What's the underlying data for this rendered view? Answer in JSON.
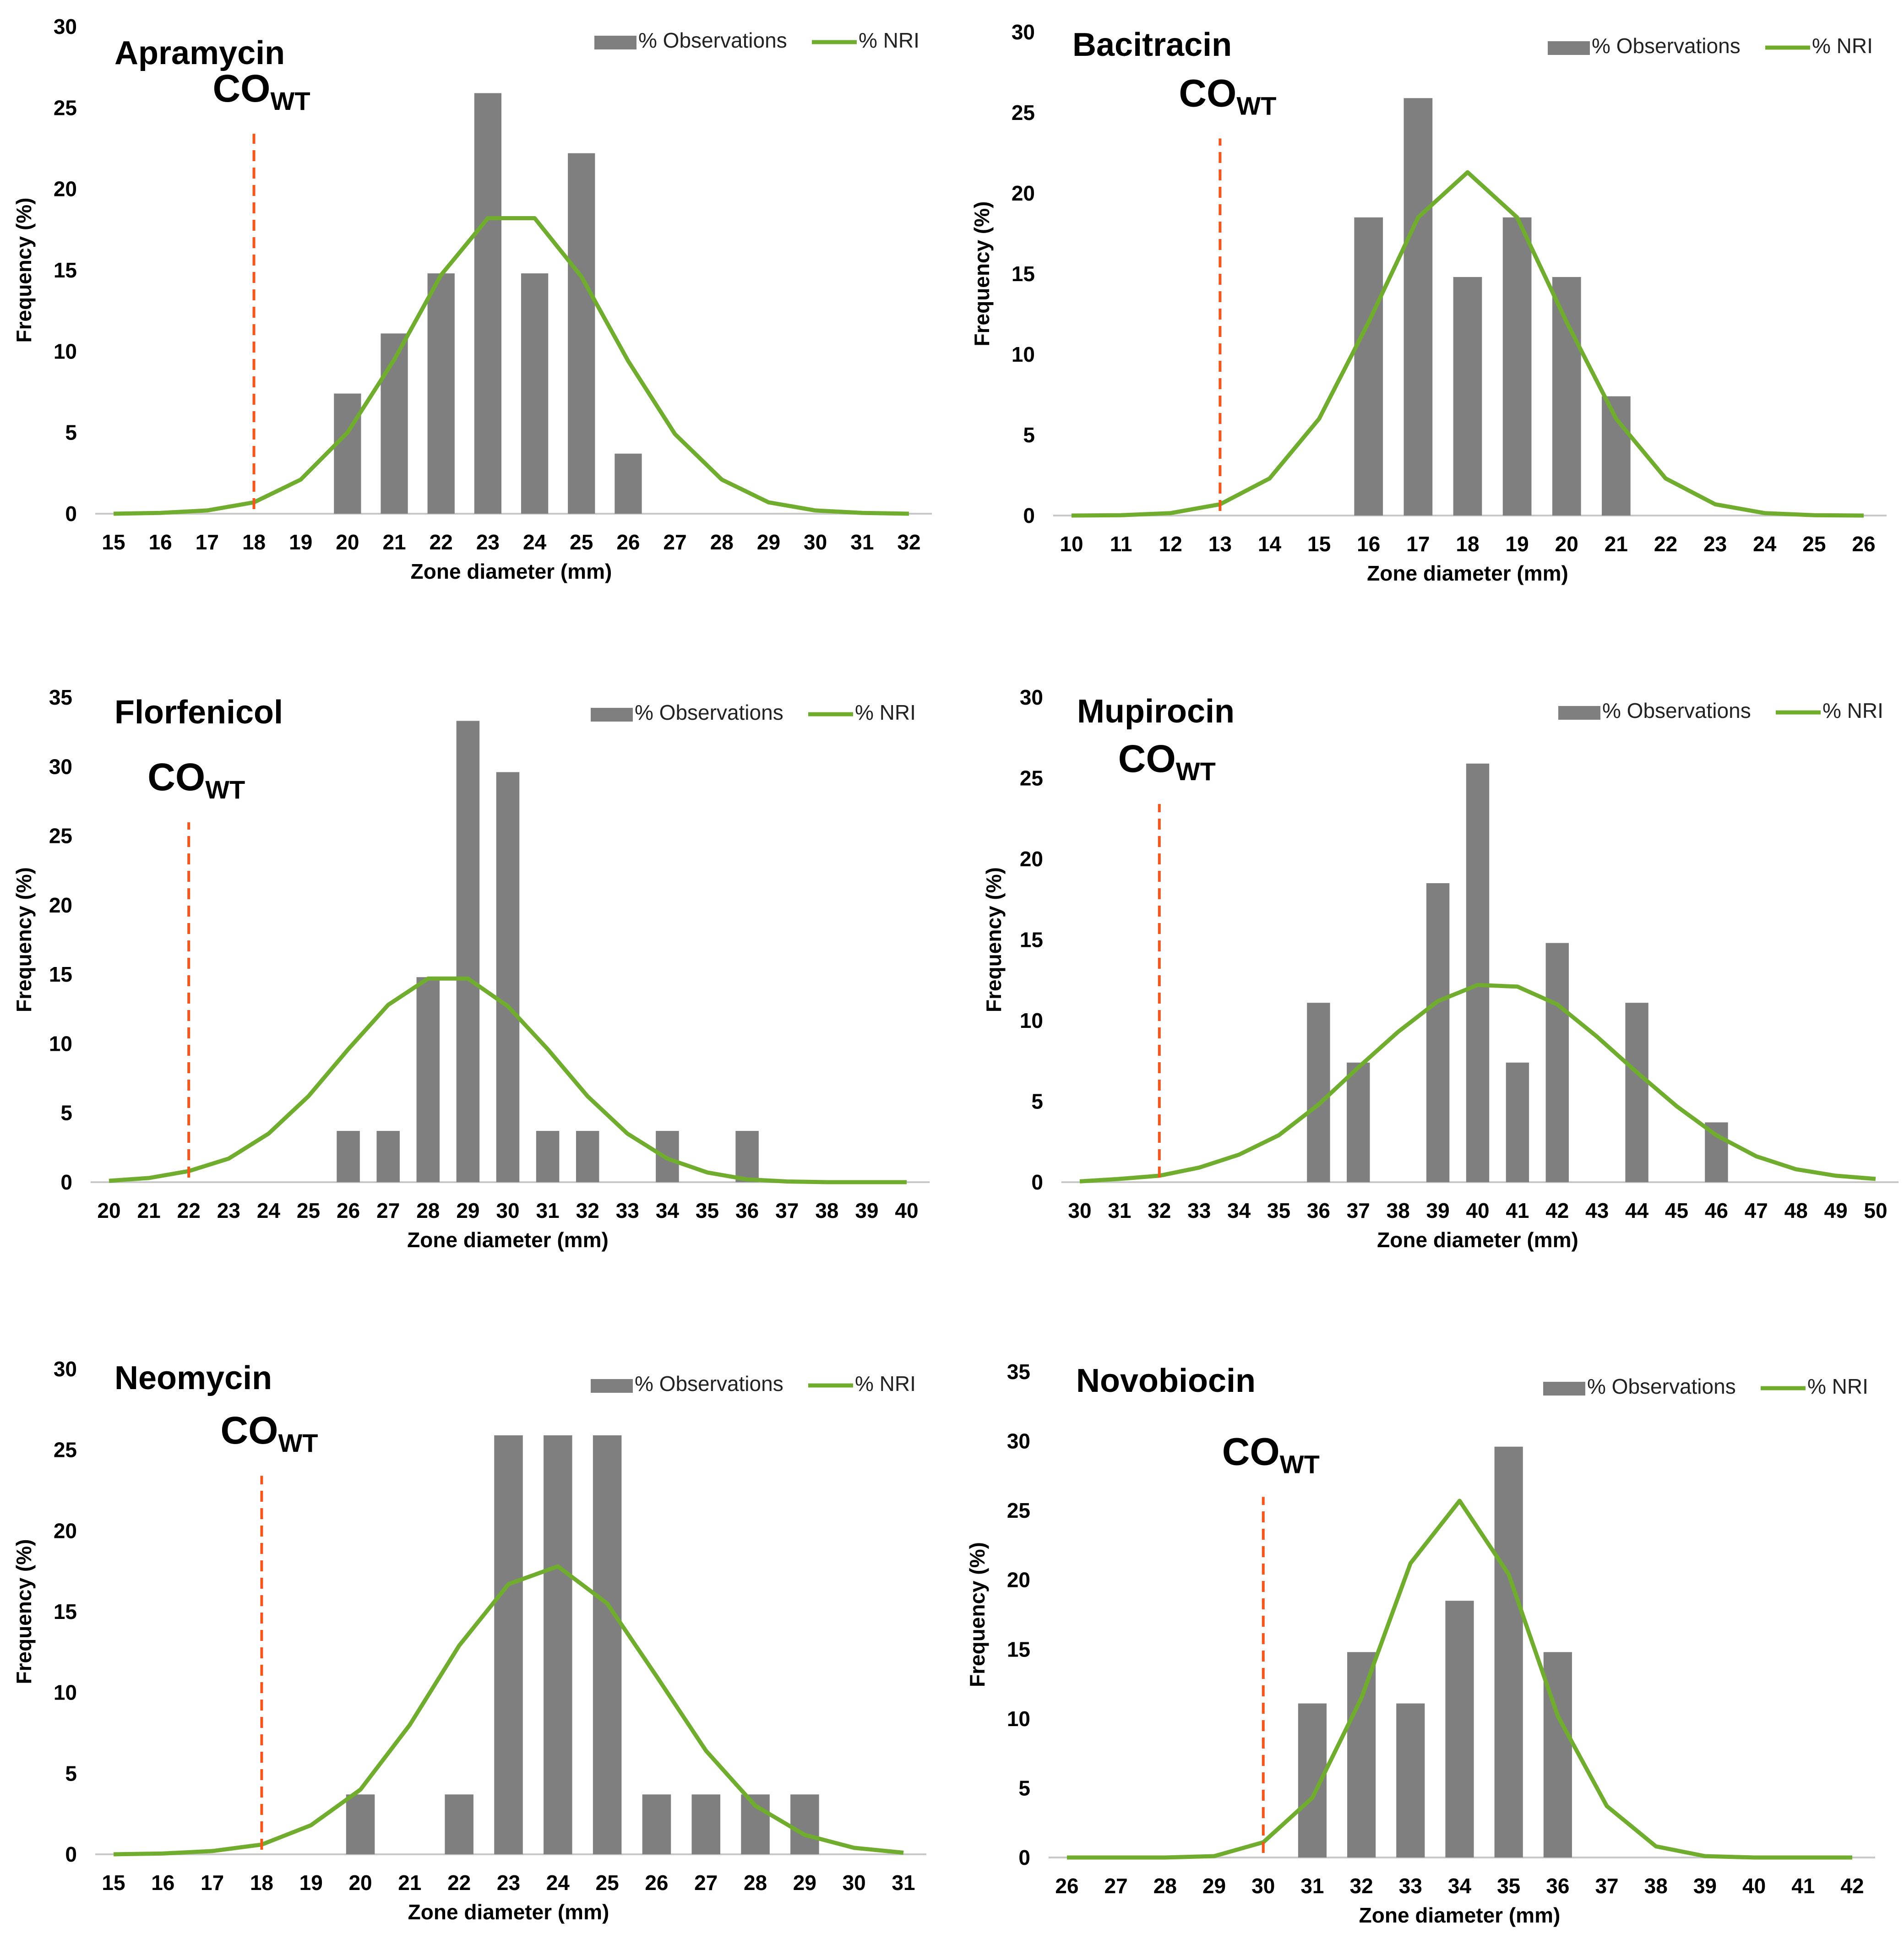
{
  "legend": {
    "observations": "% Observations",
    "nri": "% NRI"
  },
  "colors": {
    "bar": "#7f7f7f",
    "line": "#70ad2f",
    "cutoff": "#f4561c"
  },
  "chart_data": [
    {
      "type": "bar",
      "title": "Apramycin",
      "xlabel": "Zone diameter (mm)",
      "ylabel": "Frequency (%)",
      "ylim": [
        0,
        30
      ],
      "yticks": [
        0,
        5,
        10,
        15,
        20,
        25,
        30
      ],
      "categories": [
        15,
        16,
        17,
        18,
        19,
        20,
        21,
        22,
        23,
        24,
        25,
        26,
        27,
        28,
        29,
        30,
        31,
        32
      ],
      "series": [
        {
          "name": "% Observations",
          "type": "bar",
          "values": [
            0,
            0,
            0,
            0,
            0,
            7.4,
            11.1,
            14.8,
            25.9,
            14.8,
            22.2,
            3.7,
            0,
            0,
            0,
            0,
            0,
            0
          ]
        },
        {
          "name": "% NRI",
          "type": "line",
          "values": [
            0.0,
            0.05,
            0.2,
            0.7,
            2.1,
            5.0,
            9.5,
            14.7,
            18.2,
            18.2,
            14.6,
            9.4,
            4.9,
            2.1,
            0.7,
            0.2,
            0.05,
            0.0
          ]
        }
      ],
      "cutoff": {
        "label": "CO",
        "sub": "WT",
        "x": 18
      }
    },
    {
      "type": "bar",
      "title": "Bacitracin",
      "xlabel": "Zone diameter (mm)",
      "ylabel": "Frequency (%)",
      "ylim": [
        0,
        30
      ],
      "yticks": [
        0,
        5,
        10,
        15,
        20,
        25,
        30
      ],
      "categories": [
        10,
        11,
        12,
        13,
        14,
        15,
        16,
        17,
        18,
        19,
        20,
        21,
        22,
        23,
        24,
        25,
        26
      ],
      "series": [
        {
          "name": "% Observations",
          "type": "bar",
          "values": [
            0,
            0,
            0,
            0,
            0,
            0,
            18.5,
            25.9,
            14.8,
            18.5,
            14.8,
            7.4,
            0,
            0,
            0,
            0,
            0
          ]
        },
        {
          "name": "% NRI",
          "type": "line",
          "values": [
            0.0,
            0.02,
            0.15,
            0.7,
            2.3,
            6.0,
            12.0,
            18.5,
            21.3,
            18.5,
            12.0,
            6.0,
            2.3,
            0.7,
            0.15,
            0.02,
            0.0
          ]
        }
      ],
      "cutoff": {
        "label": "CO",
        "sub": "WT",
        "x": 13
      }
    },
    {
      "type": "bar",
      "title": "Florfenicol",
      "xlabel": "Zone diameter (mm)",
      "ylabel": "Frequency (%)",
      "ylim": [
        0,
        35
      ],
      "yticks": [
        0,
        5,
        10,
        15,
        20,
        25,
        30,
        35
      ],
      "categories": [
        20,
        21,
        22,
        23,
        24,
        25,
        26,
        27,
        28,
        29,
        30,
        31,
        32,
        33,
        34,
        35,
        36,
        37,
        38,
        39,
        40
      ],
      "series": [
        {
          "name": "% Observations",
          "type": "bar",
          "values": [
            0,
            0,
            0,
            0,
            0,
            0,
            3.7,
            3.7,
            14.8,
            33.3,
            29.6,
            3.7,
            3.7,
            0,
            3.7,
            0,
            3.7,
            0,
            0,
            0,
            0
          ]
        },
        {
          "name": "% NRI",
          "type": "line",
          "values": [
            0.1,
            0.3,
            0.8,
            1.7,
            3.5,
            6.2,
            9.6,
            12.8,
            14.7,
            14.7,
            12.7,
            9.6,
            6.2,
            3.5,
            1.7,
            0.7,
            0.2,
            0.05,
            0.0,
            0.0,
            0.0
          ]
        }
      ],
      "cutoff": {
        "label": "CO",
        "sub": "WT",
        "x": 22
      }
    },
    {
      "type": "bar",
      "title": "Mupirocin",
      "xlabel": "Zone diameter (mm)",
      "ylabel": "Frequency (%)",
      "ylim": [
        0,
        30
      ],
      "yticks": [
        0,
        5,
        10,
        15,
        20,
        25,
        30
      ],
      "categories": [
        30,
        31,
        32,
        33,
        34,
        35,
        36,
        37,
        38,
        39,
        40,
        41,
        42,
        43,
        44,
        45,
        46,
        47,
        48,
        49,
        50
      ],
      "series": [
        {
          "name": "% Observations",
          "type": "bar",
          "values": [
            0,
            0,
            0,
            0,
            0,
            0,
            11.1,
            7.4,
            0,
            18.5,
            25.9,
            7.4,
            14.8,
            0,
            11.1,
            0,
            3.7,
            0,
            0,
            0,
            0
          ]
        },
        {
          "name": "% NRI",
          "type": "line",
          "values": [
            0.05,
            0.2,
            0.4,
            0.9,
            1.7,
            2.9,
            4.8,
            7.1,
            9.3,
            11.2,
            12.2,
            12.1,
            11.0,
            9.0,
            6.8,
            4.7,
            2.9,
            1.6,
            0.8,
            0.4,
            0.2
          ]
        }
      ],
      "cutoff": {
        "label": "CO",
        "sub": "WT",
        "x": 32
      }
    },
    {
      "type": "bar",
      "title": "Neomycin",
      "xlabel": "Zone diameter (mm)",
      "ylabel": "Frequency (%)",
      "ylim": [
        0,
        30
      ],
      "yticks": [
        0,
        5,
        10,
        15,
        20,
        25,
        30
      ],
      "categories": [
        15,
        16,
        17,
        18,
        19,
        20,
        21,
        22,
        23,
        24,
        25,
        26,
        27,
        28,
        29,
        30,
        31
      ],
      "series": [
        {
          "name": "% Observations",
          "type": "bar",
          "values": [
            0,
            0,
            0,
            0,
            0,
            3.7,
            0,
            3.7,
            25.9,
            25.9,
            25.9,
            3.7,
            3.7,
            3.7,
            3.7,
            0,
            0
          ]
        },
        {
          "name": "% NRI",
          "type": "line",
          "values": [
            0.0,
            0.05,
            0.2,
            0.6,
            1.8,
            4.0,
            8.0,
            12.9,
            16.7,
            17.8,
            15.5,
            11.0,
            6.4,
            3.0,
            1.2,
            0.4,
            0.1
          ]
        }
      ],
      "cutoff": {
        "label": "CO",
        "sub": "WT",
        "x": 18
      }
    },
    {
      "type": "bar",
      "title": "Novobiocin",
      "xlabel": "Zone diameter (mm)",
      "ylabel": "Frequency (%)",
      "ylim": [
        0,
        35
      ],
      "yticks": [
        0,
        5,
        10,
        15,
        20,
        25,
        30,
        35
      ],
      "categories": [
        26,
        27,
        28,
        29,
        30,
        31,
        32,
        33,
        34,
        35,
        36,
        37,
        38,
        39,
        40,
        41,
        42
      ],
      "series": [
        {
          "name": "% Observations",
          "type": "bar",
          "values": [
            0,
            0,
            0,
            0,
            0,
            11.1,
            14.8,
            11.1,
            18.5,
            29.6,
            14.8,
            0,
            0,
            0,
            0,
            0,
            0
          ]
        },
        {
          "name": "% NRI",
          "type": "line",
          "values": [
            0.0,
            0.0,
            0.0,
            0.1,
            1.1,
            4.3,
            11.5,
            21.2,
            25.7,
            20.4,
            10.2,
            3.7,
            0.8,
            0.1,
            0.0,
            0.0,
            0.0
          ]
        }
      ],
      "cutoff": {
        "label": "CO",
        "sub": "WT",
        "x": 30
      }
    }
  ]
}
